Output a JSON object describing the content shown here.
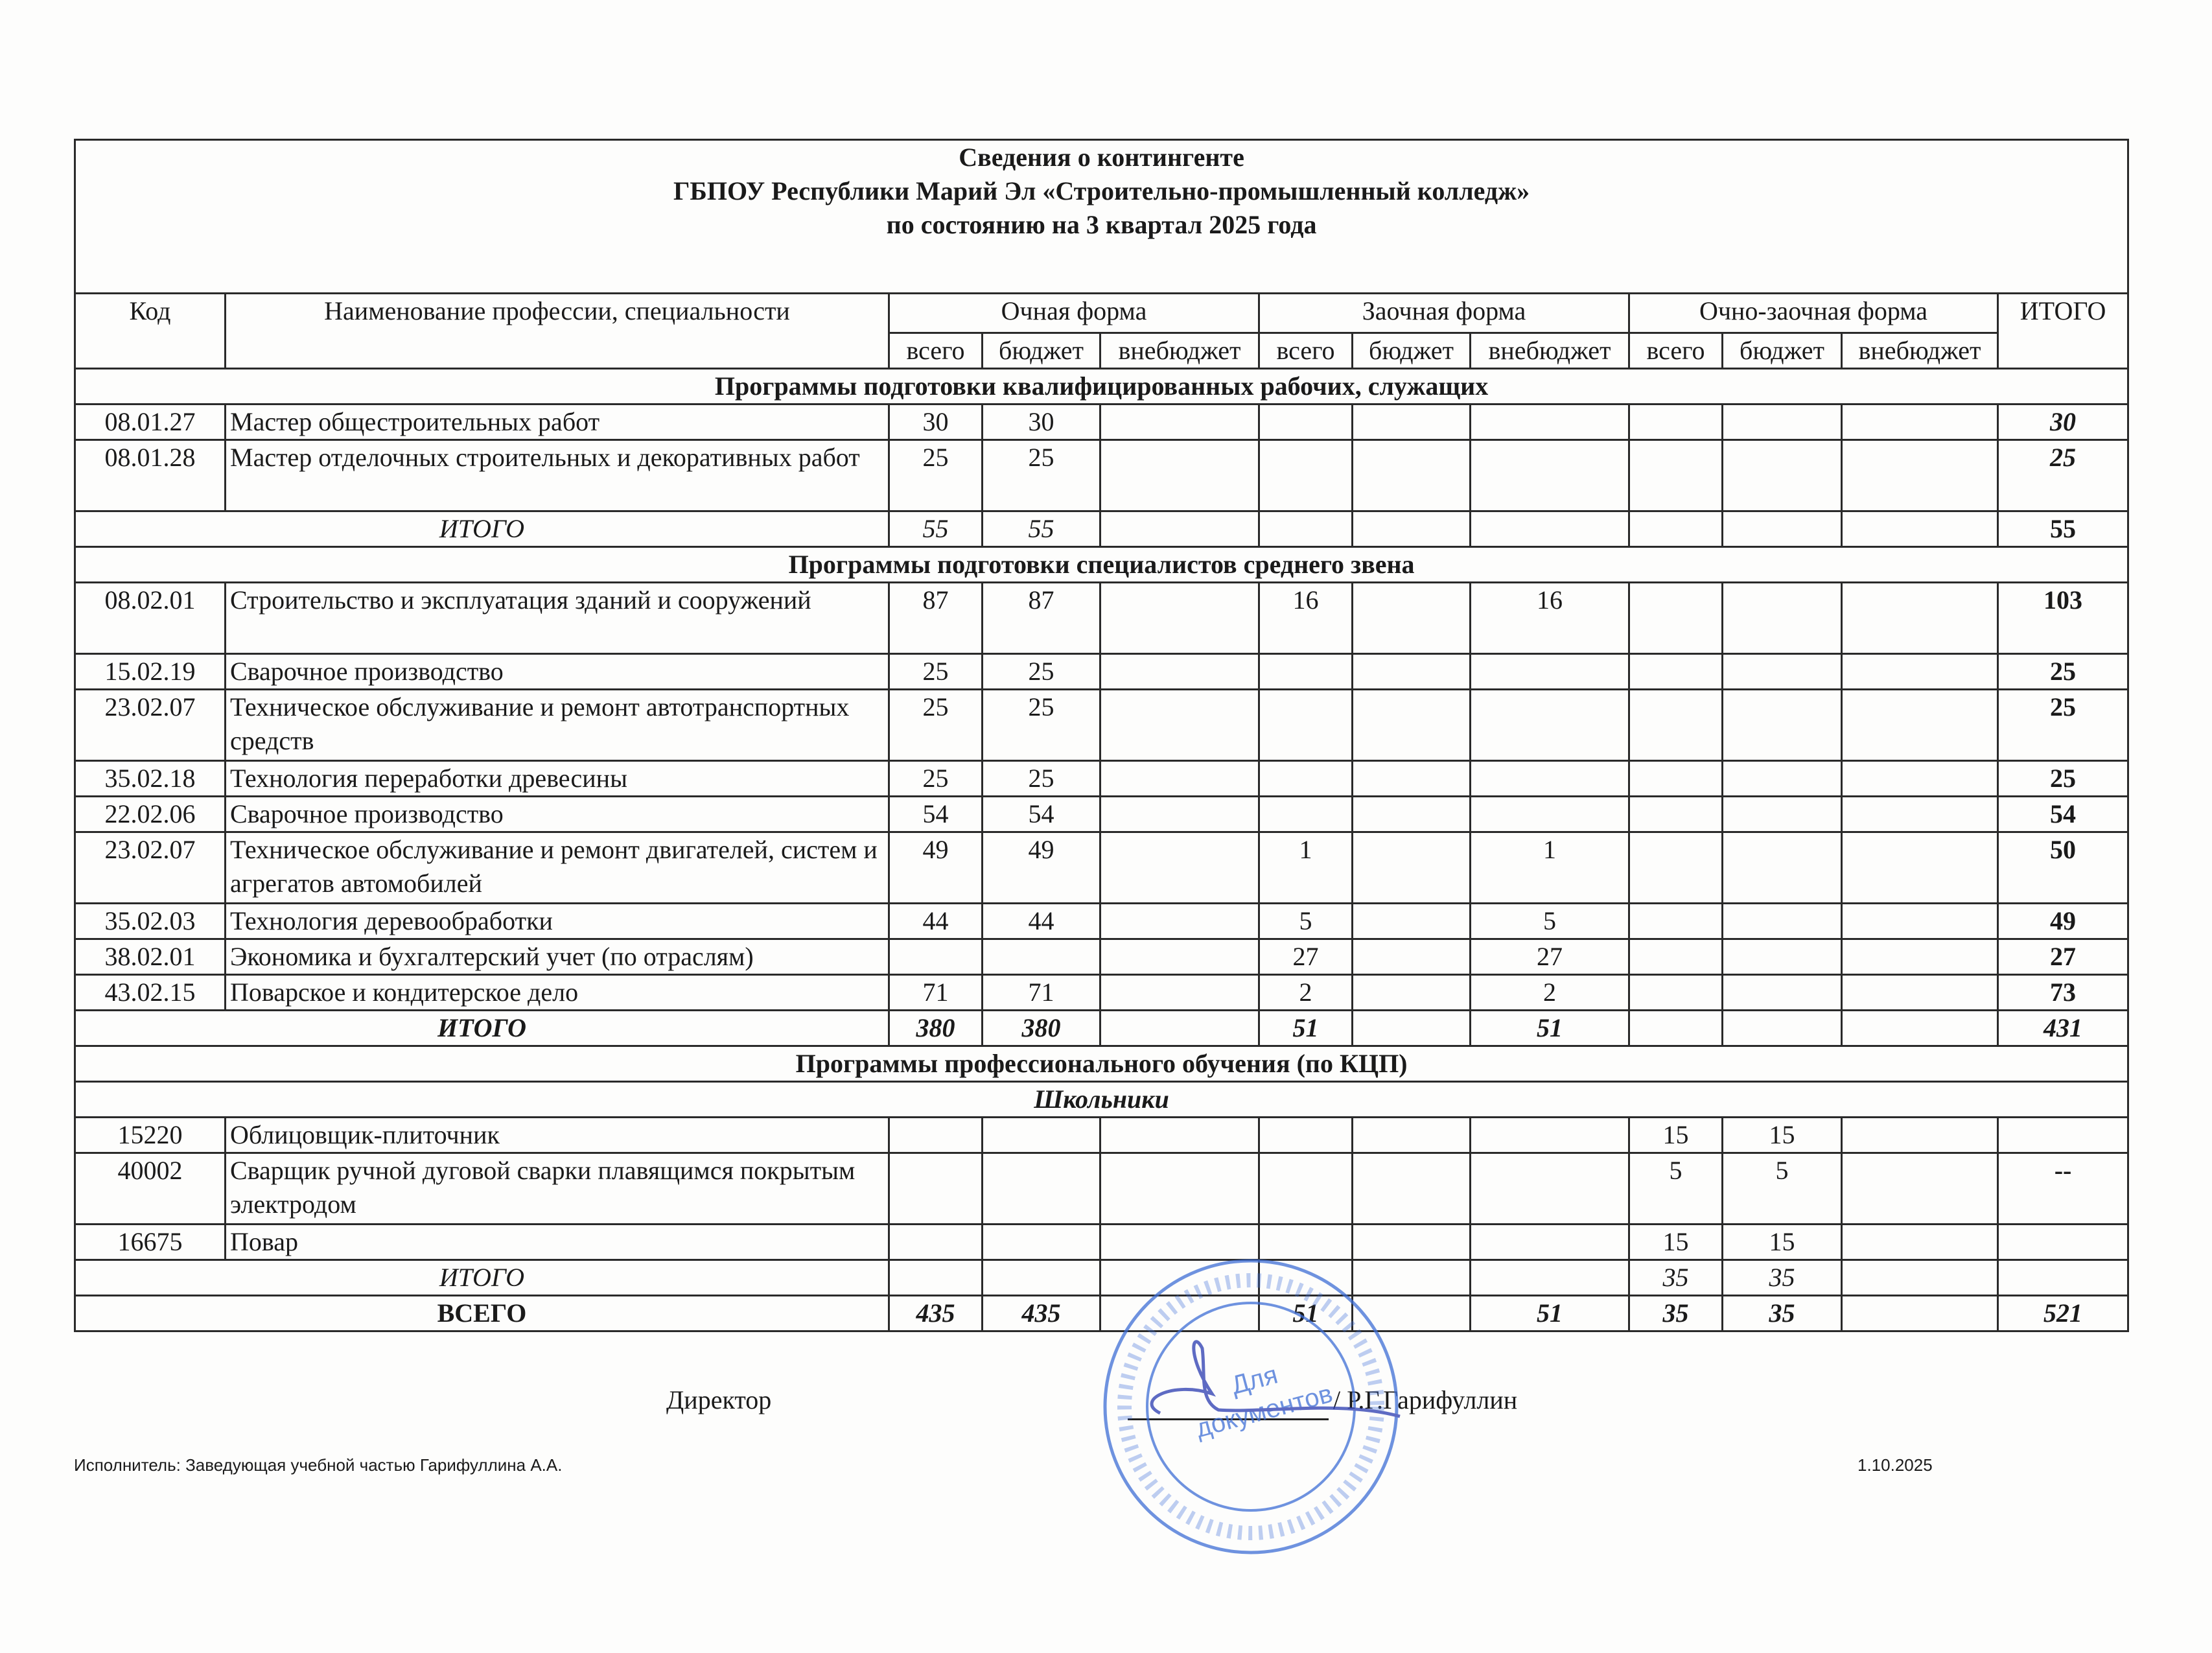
{
  "title": {
    "line1": "Сведения о контингенте",
    "line2": "ГБПОУ Республики Марий Эл «Строительно-промышленный колледж»",
    "line3": "по состоянию на  3 квартал 2025 года"
  },
  "headers": {
    "code": "Код",
    "name": "Наименование профессии, специальности",
    "groups": [
      "Очная форма",
      "Заочная форма",
      "Очно-заочная форма"
    ],
    "sub": [
      "всего",
      "бюджет",
      "внебюджет"
    ],
    "total": "ИТОГО"
  },
  "rows": [
    {
      "type": "section",
      "label": "Программы подготовки квалифицированных рабочих, служащих"
    },
    {
      "type": "data",
      "code": "08.01.27",
      "name": "Мастер общестроительных работ",
      "values": [
        "30",
        "30",
        "",
        "",
        "",
        "",
        "",
        "",
        "",
        "30"
      ],
      "tall": false,
      "final_italic": true
    },
    {
      "type": "data",
      "code": "08.01.28",
      "name": "Мастер отделочных строительных и декоративных работ",
      "values": [
        "25",
        "25",
        "",
        "",
        "",
        "",
        "",
        "",
        "",
        "25"
      ],
      "tall": true,
      "final_italic": true
    },
    {
      "type": "total",
      "label": "ИТОГО",
      "values": [
        "55",
        "55",
        "",
        "",
        "",
        "",
        "",
        "",
        "",
        "55"
      ]
    },
    {
      "type": "section",
      "label": "Программы подготовки специалистов среднего звена"
    },
    {
      "type": "data",
      "code": "08.02.01",
      "name": "Строительство и эксплуатация зданий и сооружений",
      "values": [
        "87",
        "87",
        "",
        "16",
        "",
        "16",
        "",
        "",
        "",
        "103"
      ],
      "tall": true
    },
    {
      "type": "data",
      "code": "15.02.19",
      "name": "Сварочное производство",
      "values": [
        "25",
        "25",
        "",
        "",
        "",
        "",
        "",
        "",
        "",
        "25"
      ]
    },
    {
      "type": "data",
      "code": "23.02.07",
      "name": "Техническое обслуживание и ремонт автотранспортных средств",
      "values": [
        "25",
        "25",
        "",
        "",
        "",
        "",
        "",
        "",
        "",
        "25"
      ],
      "tall": true
    },
    {
      "type": "data",
      "code": "35.02.18",
      "name": "Технология переработки древесины",
      "values": [
        "25",
        "25",
        "",
        "",
        "",
        "",
        "",
        "",
        "",
        "25"
      ]
    },
    {
      "type": "data",
      "code": "22.02.06",
      "name": "Сварочное производство",
      "values": [
        "54",
        "54",
        "",
        "",
        "",
        "",
        "",
        "",
        "",
        "54"
      ]
    },
    {
      "type": "data",
      "code": "23.02.07",
      "name": "Техническое обслуживание и ремонт двигателей, систем и агрегатов автомобилей",
      "values": [
        "49",
        "49",
        "",
        "1",
        "",
        "1",
        "",
        "",
        "",
        "50"
      ],
      "tall": true
    },
    {
      "type": "data",
      "code": "35.02.03",
      "name": "Технология деревообработки",
      "values": [
        "44",
        "44",
        "",
        "5",
        "",
        "5",
        "",
        "",
        "",
        "49"
      ]
    },
    {
      "type": "data",
      "code": "38.02.01",
      "name": "Экономика и бухгалтерский учет (по отраслям)",
      "values": [
        "",
        "",
        "",
        "27",
        "",
        "27",
        "",
        "",
        "",
        "27"
      ]
    },
    {
      "type": "data",
      "code": "43.02.15",
      "name": "Поварское и кондитерское дело",
      "values": [
        "71",
        "71",
        "",
        "2",
        "",
        "2",
        "",
        "",
        "",
        "73"
      ]
    },
    {
      "type": "total",
      "label": "ИТОГО",
      "values": [
        "380",
        "380",
        "",
        "51",
        "",
        "51",
        "",
        "",
        "",
        "431"
      ],
      "bold": true
    },
    {
      "type": "section",
      "label": "Программы профессионального обучения (по КЦП)"
    },
    {
      "type": "subsection",
      "label": "Школьники"
    },
    {
      "type": "data",
      "code": "15220",
      "name": "Облицовщик-плиточник",
      "values": [
        "",
        "",
        "",
        "",
        "",
        "",
        "15",
        "15",
        "",
        ""
      ]
    },
    {
      "type": "data",
      "code": "40002",
      "name": "Сварщик ручной дуговой сварки плавящимся покрытым электродом",
      "values": [
        "",
        "",
        "",
        "",
        "",
        "",
        "5",
        "5",
        "",
        "--"
      ],
      "tall": true
    },
    {
      "type": "data",
      "code": "16675",
      "name": "Повар",
      "values": [
        "",
        "",
        "",
        "",
        "",
        "",
        "15",
        "15",
        "",
        ""
      ]
    },
    {
      "type": "total",
      "label": "ИТОГО",
      "values": [
        "",
        "",
        "",
        "",
        "",
        "",
        "35",
        "35",
        "",
        ""
      ]
    },
    {
      "type": "grand",
      "label": "ВСЕГО",
      "values": [
        "435",
        "435",
        "",
        "51",
        "",
        "51",
        "35",
        "35",
        "",
        "521"
      ]
    }
  ],
  "footer": {
    "director_label": "Директор",
    "director_name": "/ Р.Г.Гарифуллин",
    "executor": "Исполнитель: Заведующая учебной частью     Гарифуллина А.А.",
    "date": "1.10.2025"
  },
  "stamp": {
    "center_text": "Для документов",
    "color": "#3f6fd6"
  },
  "colors": {
    "ink": "#1a1a1a",
    "stamp": "#3f6fd6",
    "signature": "#2a3bb0"
  }
}
